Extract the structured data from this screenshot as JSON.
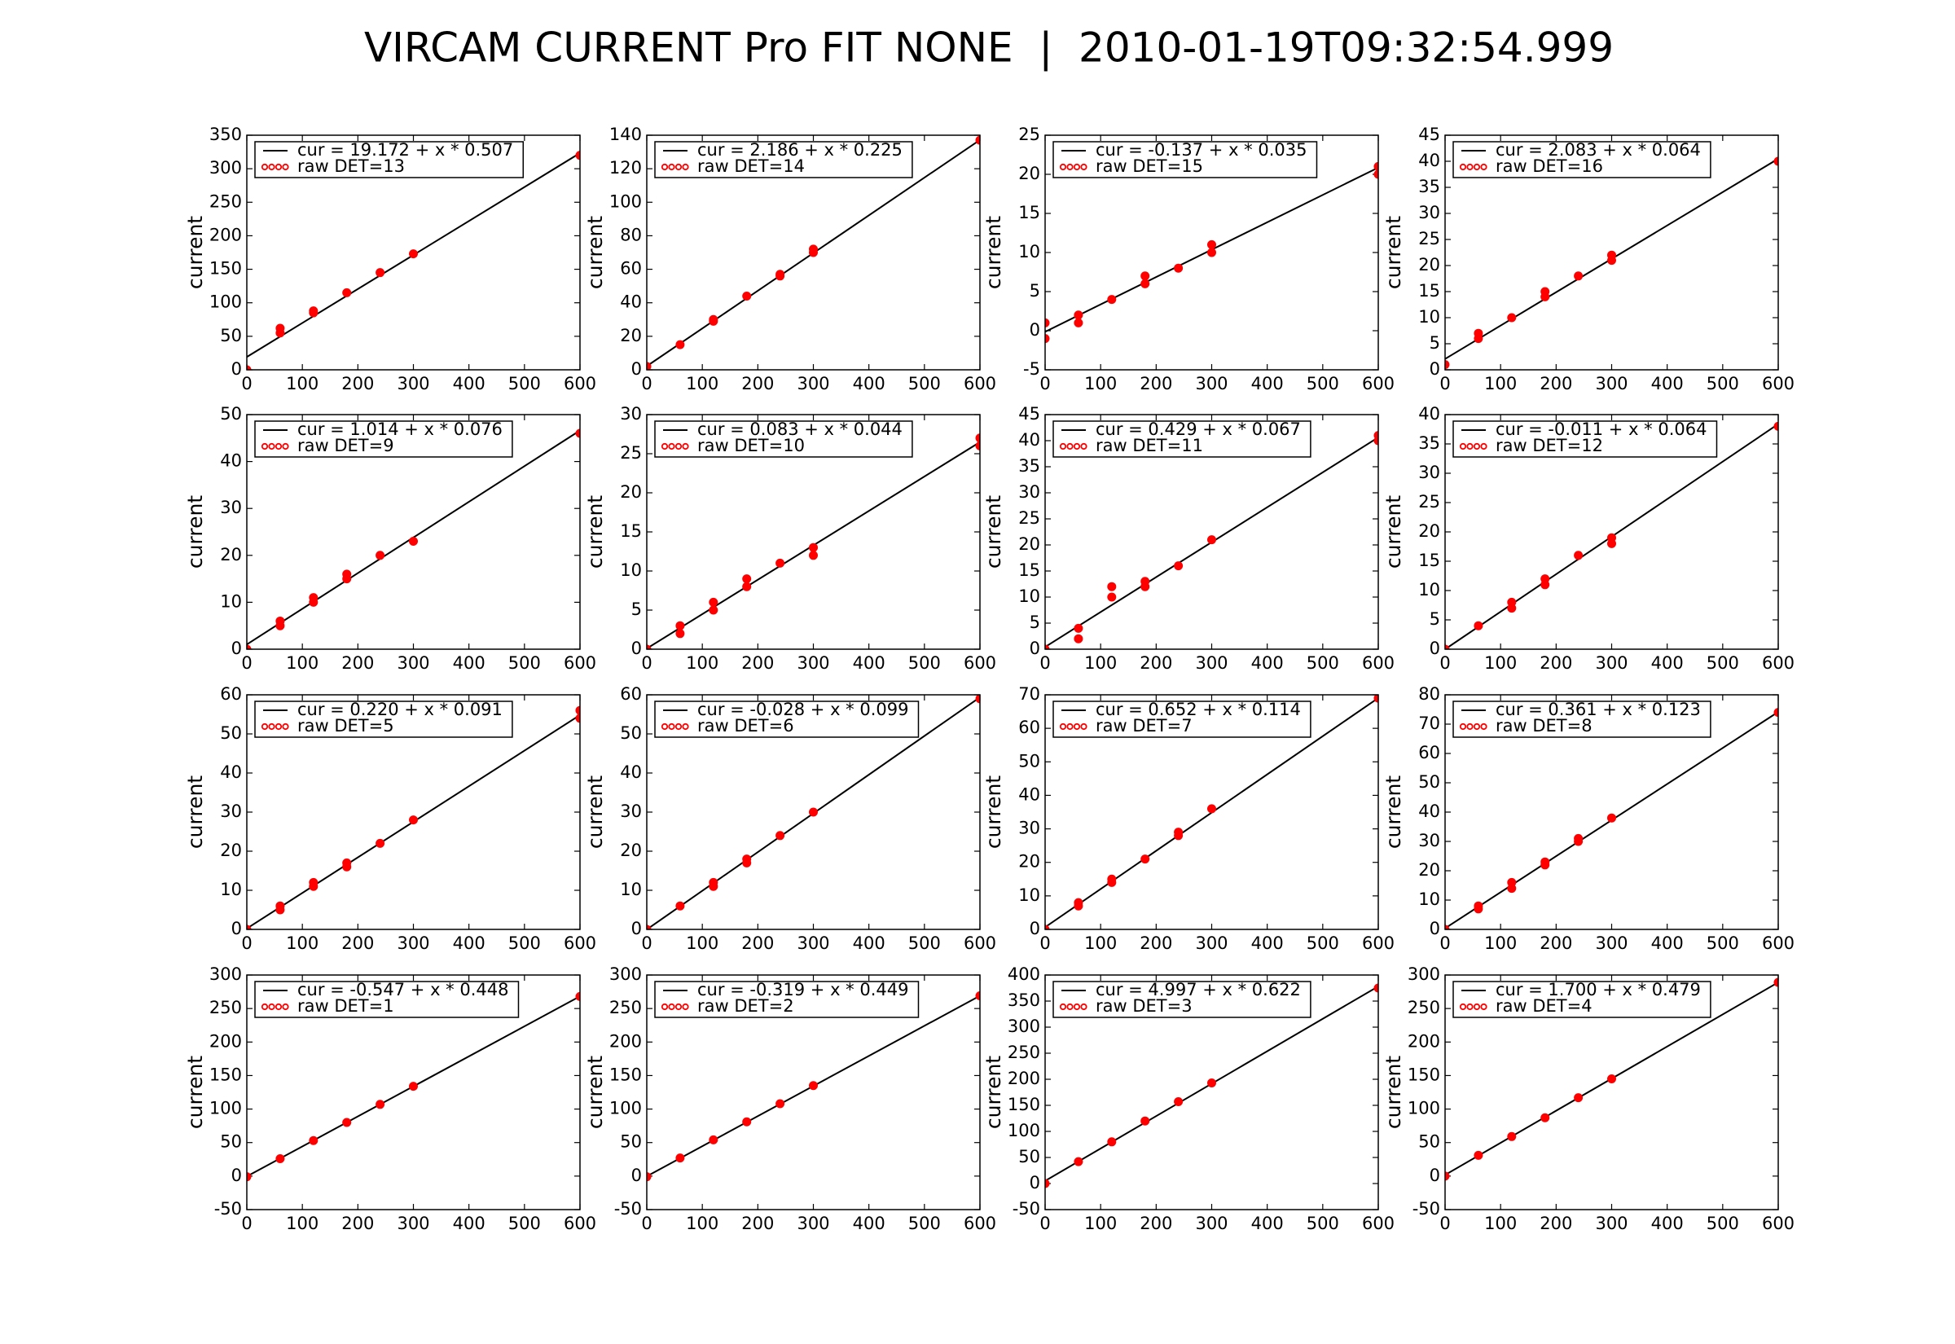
{
  "title": "VIRCAM CURRENT Pro FIT NONE  |  2010-01-19T09:32:54.999",
  "chart_data": [
    {
      "type": "scatter",
      "ylabel": "current",
      "legend": "upper left",
      "xlim": [
        0,
        600
      ],
      "xticks": [
        0,
        100,
        200,
        300,
        400,
        500,
        600
      ],
      "ylim": [
        0,
        350
      ],
      "yticks": [
        0,
        50,
        100,
        150,
        200,
        250,
        300,
        350
      ],
      "series": [
        {
          "name": "cur = 19.172 + x * 0.507",
          "type": "line",
          "color": "#000000",
          "x": [
            0,
            600
          ],
          "values": [
            19.172,
            323.372
          ]
        },
        {
          "name": "raw DET=13",
          "color": "#ff0000",
          "x": [
            0,
            60,
            60,
            120,
            120,
            180,
            240,
            300,
            600
          ],
          "values": [
            0,
            55,
            62,
            85,
            88,
            115,
            145,
            173,
            320
          ]
        }
      ]
    },
    {
      "type": "scatter",
      "ylabel": "current",
      "legend": "upper left",
      "xlim": [
        0,
        600
      ],
      "xticks": [
        0,
        100,
        200,
        300,
        400,
        500,
        600
      ],
      "ylim": [
        0,
        140
      ],
      "yticks": [
        0,
        20,
        40,
        60,
        80,
        100,
        120,
        140
      ],
      "series": [
        {
          "name": "cur = 2.186 + x * 0.225",
          "type": "line",
          "color": "#000000",
          "x": [
            0,
            600
          ],
          "values": [
            2.186,
            137.186
          ]
        },
        {
          "name": "raw DET=14",
          "color": "#ff0000",
          "x": [
            0,
            60,
            120,
            120,
            180,
            240,
            240,
            300,
            300,
            600
          ],
          "values": [
            2,
            15,
            29,
            30,
            44,
            56,
            57,
            70,
            72,
            137
          ]
        }
      ]
    },
    {
      "type": "scatter",
      "ylabel": "current",
      "legend": "upper left",
      "xlim": [
        0,
        600
      ],
      "xticks": [
        0,
        100,
        200,
        300,
        400,
        500,
        600
      ],
      "ylim": [
        -5,
        25
      ],
      "yticks": [
        -5,
        0,
        5,
        10,
        15,
        20,
        25
      ],
      "series": [
        {
          "name": "cur = -0.137 + x * 0.035",
          "type": "line",
          "color": "#000000",
          "x": [
            0,
            600
          ],
          "values": [
            -0.137,
            20.863
          ]
        },
        {
          "name": "raw DET=15",
          "color": "#ff0000",
          "x": [
            0,
            0,
            60,
            60,
            120,
            180,
            180,
            240,
            300,
            300,
            600,
            600
          ],
          "values": [
            1,
            -1,
            2,
            1,
            4,
            6,
            7,
            8,
            10,
            11,
            20,
            21
          ]
        }
      ]
    },
    {
      "type": "scatter",
      "ylabel": "current",
      "legend": "upper left",
      "xlim": [
        0,
        600
      ],
      "xticks": [
        0,
        100,
        200,
        300,
        400,
        500,
        600
      ],
      "ylim": [
        0,
        45
      ],
      "yticks": [
        0,
        5,
        10,
        15,
        20,
        25,
        30,
        35,
        40,
        45
      ],
      "series": [
        {
          "name": "cur = 2.083 + x * 0.064",
          "type": "line",
          "color": "#000000",
          "x": [
            0,
            600
          ],
          "values": [
            2.083,
            40.483
          ]
        },
        {
          "name": "raw DET=16",
          "color": "#ff0000",
          "x": [
            0,
            60,
            60,
            120,
            180,
            180,
            240,
            300,
            300,
            600
          ],
          "values": [
            1,
            6,
            7,
            10,
            14,
            15,
            18,
            21,
            22,
            40
          ]
        }
      ]
    },
    {
      "type": "scatter",
      "ylabel": "current",
      "legend": "upper left",
      "xlim": [
        0,
        600
      ],
      "xticks": [
        0,
        100,
        200,
        300,
        400,
        500,
        600
      ],
      "ylim": [
        0,
        50
      ],
      "yticks": [
        0,
        10,
        20,
        30,
        40,
        50
      ],
      "series": [
        {
          "name": "cur = 1.014 + x * 0.076",
          "type": "line",
          "color": "#000000",
          "x": [
            0,
            600
          ],
          "values": [
            1.014,
            46.614
          ]
        },
        {
          "name": "raw DET=9",
          "color": "#ff0000",
          "x": [
            0,
            60,
            60,
            120,
            120,
            180,
            180,
            240,
            300,
            600
          ],
          "values": [
            0,
            5,
            6,
            10,
            11,
            15,
            16,
            20,
            23,
            46
          ]
        }
      ]
    },
    {
      "type": "scatter",
      "ylabel": "current",
      "legend": "upper left",
      "xlim": [
        0,
        600
      ],
      "xticks": [
        0,
        100,
        200,
        300,
        400,
        500,
        600
      ],
      "ylim": [
        0,
        30
      ],
      "yticks": [
        0,
        5,
        10,
        15,
        20,
        25,
        30
      ],
      "series": [
        {
          "name": "cur = 0.083 + x * 0.044",
          "type": "line",
          "color": "#000000",
          "x": [
            0,
            600
          ],
          "values": [
            0.083,
            26.483
          ]
        },
        {
          "name": "raw DET=10",
          "color": "#ff0000",
          "x": [
            0,
            60,
            60,
            120,
            120,
            180,
            180,
            240,
            300,
            300,
            600,
            600
          ],
          "values": [
            0,
            2,
            3,
            5,
            6,
            8,
            9,
            11,
            12,
            13,
            26,
            27
          ]
        }
      ]
    },
    {
      "type": "scatter",
      "ylabel": "current",
      "legend": "upper left",
      "xlim": [
        0,
        600
      ],
      "xticks": [
        0,
        100,
        200,
        300,
        400,
        500,
        600
      ],
      "ylim": [
        0,
        45
      ],
      "yticks": [
        0,
        5,
        10,
        15,
        20,
        25,
        30,
        35,
        40,
        45
      ],
      "series": [
        {
          "name": "cur = 0.429 + x * 0.067",
          "type": "line",
          "color": "#000000",
          "x": [
            0,
            600
          ],
          "values": [
            0.429,
            40.629
          ]
        },
        {
          "name": "raw DET=11",
          "color": "#ff0000",
          "x": [
            0,
            60,
            60,
            120,
            120,
            180,
            180,
            240,
            300,
            600,
            600
          ],
          "values": [
            0,
            2,
            4,
            10,
            12,
            12,
            13,
            16,
            21,
            40,
            41
          ]
        }
      ]
    },
    {
      "type": "scatter",
      "ylabel": "current",
      "legend": "upper left",
      "xlim": [
        0,
        600
      ],
      "xticks": [
        0,
        100,
        200,
        300,
        400,
        500,
        600
      ],
      "ylim": [
        0,
        40
      ],
      "yticks": [
        0,
        5,
        10,
        15,
        20,
        25,
        30,
        35,
        40
      ],
      "series": [
        {
          "name": "cur = -0.011 + x * 0.064",
          "type": "line",
          "color": "#000000",
          "x": [
            0,
            600
          ],
          "values": [
            -0.011,
            38.389
          ]
        },
        {
          "name": "raw DET=12",
          "color": "#ff0000",
          "x": [
            0,
            60,
            120,
            120,
            180,
            180,
            240,
            300,
            300,
            600
          ],
          "values": [
            0,
            4,
            7,
            8,
            11,
            12,
            16,
            18,
            19,
            38
          ]
        }
      ]
    },
    {
      "type": "scatter",
      "ylabel": "current",
      "legend": "upper left",
      "xlim": [
        0,
        600
      ],
      "xticks": [
        0,
        100,
        200,
        300,
        400,
        500,
        600
      ],
      "ylim": [
        0,
        60
      ],
      "yticks": [
        0,
        10,
        20,
        30,
        40,
        50,
        60
      ],
      "series": [
        {
          "name": "cur = 0.220 + x * 0.091",
          "type": "line",
          "color": "#000000",
          "x": [
            0,
            600
          ],
          "values": [
            0.22,
            54.82
          ]
        },
        {
          "name": "raw DET=5",
          "color": "#ff0000",
          "x": [
            0,
            60,
            60,
            120,
            120,
            180,
            180,
            240,
            300,
            600,
            600
          ],
          "values": [
            0,
            5,
            6,
            11,
            12,
            16,
            17,
            22,
            28,
            54,
            56
          ]
        }
      ]
    },
    {
      "type": "scatter",
      "ylabel": "current",
      "legend": "upper left",
      "xlim": [
        0,
        600
      ],
      "xticks": [
        0,
        100,
        200,
        300,
        400,
        500,
        600
      ],
      "ylim": [
        0,
        60
      ],
      "yticks": [
        0,
        10,
        20,
        30,
        40,
        50,
        60
      ],
      "series": [
        {
          "name": "cur = -0.028 + x * 0.099",
          "type": "line",
          "color": "#000000",
          "x": [
            0,
            600
          ],
          "values": [
            -0.028,
            59.372
          ]
        },
        {
          "name": "raw DET=6",
          "color": "#ff0000",
          "x": [
            0,
            60,
            120,
            120,
            180,
            180,
            240,
            300,
            600
          ],
          "values": [
            0,
            6,
            11,
            12,
            17,
            18,
            24,
            30,
            59
          ]
        }
      ]
    },
    {
      "type": "scatter",
      "ylabel": "current",
      "legend": "upper left",
      "xlim": [
        0,
        600
      ],
      "xticks": [
        0,
        100,
        200,
        300,
        400,
        500,
        600
      ],
      "ylim": [
        0,
        70
      ],
      "yticks": [
        0,
        10,
        20,
        30,
        40,
        50,
        60,
        70
      ],
      "series": [
        {
          "name": "cur = 0.652 + x * 0.114",
          "type": "line",
          "color": "#000000",
          "x": [
            0,
            600
          ],
          "values": [
            0.652,
            69.052
          ]
        },
        {
          "name": "raw DET=7",
          "color": "#ff0000",
          "x": [
            0,
            60,
            60,
            120,
            120,
            180,
            240,
            240,
            300,
            600
          ],
          "values": [
            0,
            7,
            8,
            14,
            15,
            21,
            28,
            29,
            36,
            69
          ]
        }
      ]
    },
    {
      "type": "scatter",
      "ylabel": "current",
      "legend": "upper left",
      "xlim": [
        0,
        600
      ],
      "xticks": [
        0,
        100,
        200,
        300,
        400,
        500,
        600
      ],
      "ylim": [
        0,
        80
      ],
      "yticks": [
        0,
        10,
        20,
        30,
        40,
        50,
        60,
        70,
        80
      ],
      "series": [
        {
          "name": "cur = 0.361 + x * 0.123",
          "type": "line",
          "color": "#000000",
          "x": [
            0,
            600
          ],
          "values": [
            0.361,
            74.161
          ]
        },
        {
          "name": "raw DET=8",
          "color": "#ff0000",
          "x": [
            0,
            60,
            60,
            120,
            120,
            180,
            180,
            240,
            240,
            300,
            600
          ],
          "values": [
            0,
            7,
            8,
            14,
            16,
            22,
            23,
            30,
            31,
            38,
            74
          ]
        }
      ]
    },
    {
      "type": "scatter",
      "ylabel": "current",
      "legend": "upper left",
      "xlim": [
        0,
        600
      ],
      "xticks": [
        0,
        100,
        200,
        300,
        400,
        500,
        600
      ],
      "ylim": [
        -50,
        300
      ],
      "yticks": [
        -50,
        0,
        50,
        100,
        150,
        200,
        250,
        300
      ],
      "series": [
        {
          "name": "cur = -0.547 + x * 0.448",
          "type": "line",
          "color": "#000000",
          "x": [
            0,
            600
          ],
          "values": [
            -0.547,
            268.253
          ]
        },
        {
          "name": "raw DET=1",
          "color": "#ff0000",
          "x": [
            0,
            60,
            120,
            180,
            240,
            300,
            600
          ],
          "values": [
            -1,
            26,
            53,
            80,
            107,
            134,
            268
          ]
        }
      ]
    },
    {
      "type": "scatter",
      "ylabel": "current",
      "legend": "upper left",
      "xlim": [
        0,
        600
      ],
      "xticks": [
        0,
        100,
        200,
        300,
        400,
        500,
        600
      ],
      "ylim": [
        -50,
        300
      ],
      "yticks": [
        -50,
        0,
        50,
        100,
        150,
        200,
        250,
        300
      ],
      "series": [
        {
          "name": "cur = -0.319 + x * 0.449",
          "type": "line",
          "color": "#000000",
          "x": [
            0,
            600
          ],
          "values": [
            -0.319,
            269.081
          ]
        },
        {
          "name": "raw DET=2",
          "color": "#ff0000",
          "x": [
            0,
            60,
            120,
            180,
            240,
            300,
            600
          ],
          "values": [
            -1,
            27,
            54,
            81,
            108,
            135,
            269
          ]
        }
      ]
    },
    {
      "type": "scatter",
      "ylabel": "current",
      "legend": "upper left",
      "xlim": [
        0,
        600
      ],
      "xticks": [
        0,
        100,
        200,
        300,
        400,
        500,
        600
      ],
      "ylim": [
        -50,
        400
      ],
      "yticks": [
        -50,
        0,
        50,
        100,
        150,
        200,
        250,
        300,
        350,
        400
      ],
      "series": [
        {
          "name": "cur = 4.997 + x * 0.622",
          "type": "line",
          "color": "#000000",
          "x": [
            0,
            600
          ],
          "values": [
            4.997,
            378.197
          ]
        },
        {
          "name": "raw DET=3",
          "color": "#ff0000",
          "x": [
            0,
            60,
            120,
            180,
            240,
            300,
            600
          ],
          "values": [
            0,
            42,
            80,
            120,
            157,
            193,
            375
          ]
        }
      ]
    },
    {
      "type": "scatter",
      "ylabel": "current",
      "legend": "upper left",
      "xlim": [
        0,
        600
      ],
      "xticks": [
        0,
        100,
        200,
        300,
        400,
        500,
        600
      ],
      "ylim": [
        -50,
        300
      ],
      "yticks": [
        -50,
        0,
        50,
        100,
        150,
        200,
        250,
        300
      ],
      "series": [
        {
          "name": "cur = 1.700 + x * 0.479",
          "type": "line",
          "color": "#000000",
          "x": [
            0,
            600
          ],
          "values": [
            1.7,
            289.1
          ]
        },
        {
          "name": "raw DET=4",
          "color": "#ff0000",
          "x": [
            0,
            60,
            120,
            180,
            240,
            300,
            600
          ],
          "values": [
            0,
            31,
            59,
            87,
            117,
            145,
            289
          ]
        }
      ]
    }
  ]
}
